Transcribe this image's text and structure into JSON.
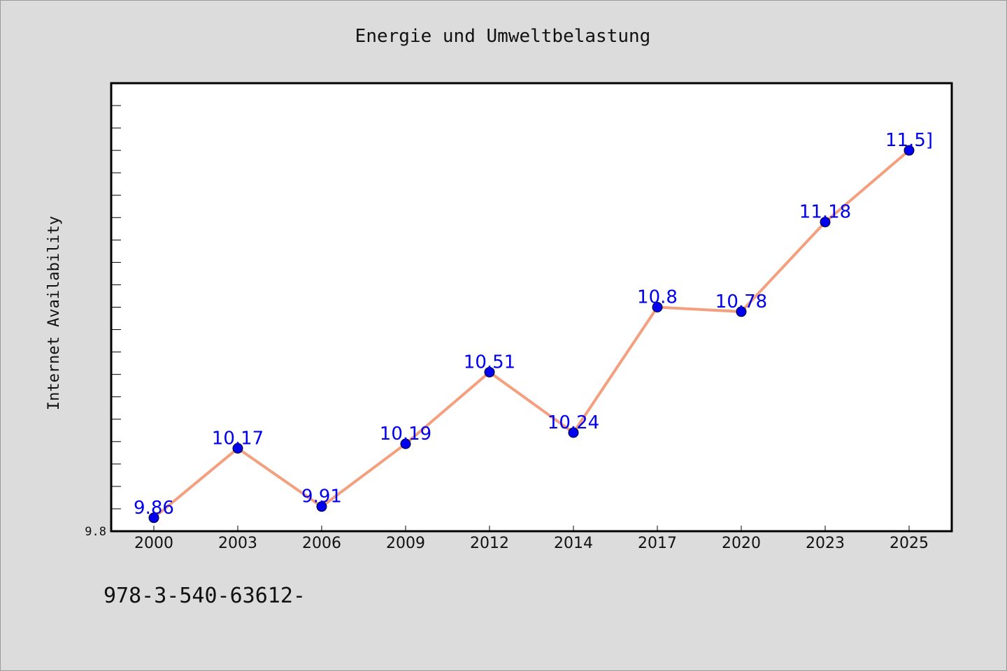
{
  "chart_data": {
    "type": "line",
    "title": "Energie und Umweltbelastung",
    "ylabel": "Internet Availability",
    "xlabel": "",
    "categories": [
      "2000",
      "2003",
      "2006",
      "2009",
      "2012",
      "2014",
      "2017",
      "2020",
      "2023",
      "2025"
    ],
    "series": [
      {
        "values": [
          9.86,
          10.17,
          9.91,
          10.19,
          10.51,
          10.24,
          10.8,
          10.78,
          11.18,
          11.5
        ]
      }
    ],
    "data_labels": [
      "9.86",
      "10.17",
      "9.91",
      "10.19",
      "10.51",
      "10.24",
      "10.8",
      "10.78",
      "11.18",
      "11.5]"
    ],
    "ylim": [
      9.8,
      11.8
    ],
    "y_ticks_labeled": [
      "9.8"
    ],
    "grid": false,
    "legend": "none",
    "colors": {
      "line": "#f4a07f",
      "marker": "#0000ee",
      "data_label": "#0000ee",
      "background": "#dcdcdc",
      "plot_area": "#ffffff"
    }
  },
  "footer": {
    "text": "978-3-540-63612-"
  }
}
